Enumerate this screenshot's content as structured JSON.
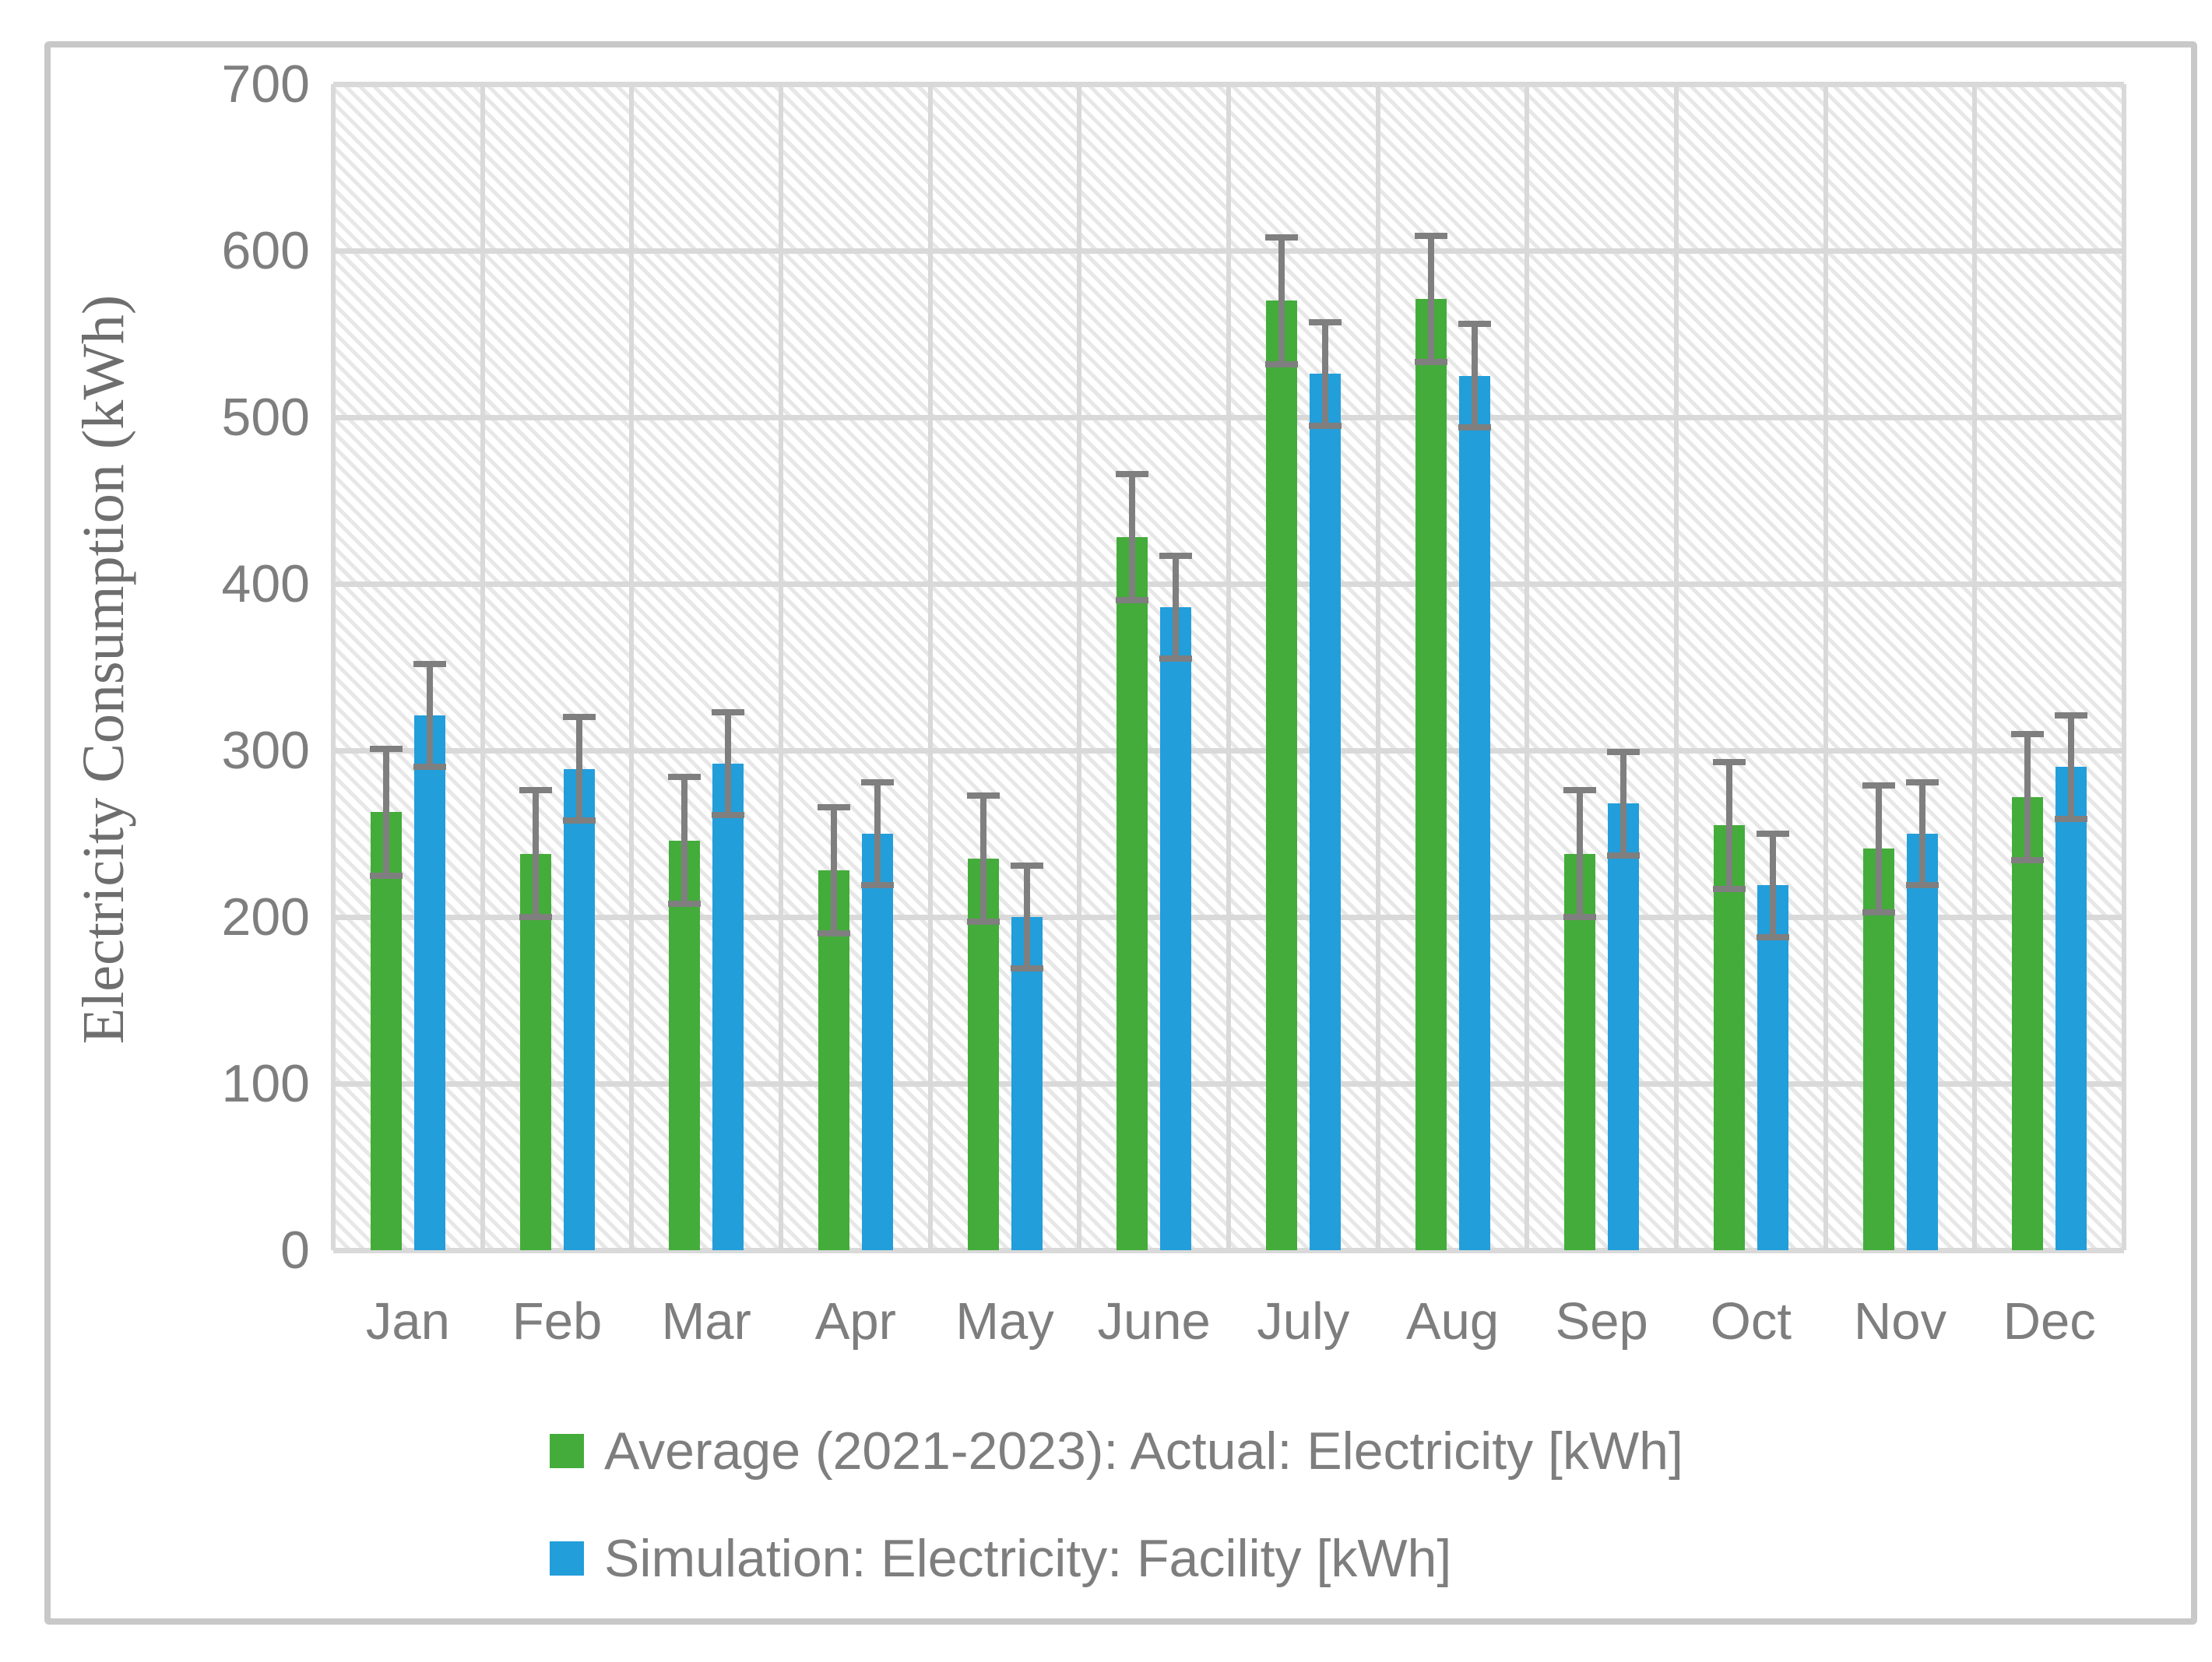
{
  "figure": {
    "background_color": "#ffffff",
    "border_color": "#c8c8c8"
  },
  "chart_data": {
    "type": "bar",
    "title": "",
    "ylabel": "Electricity Consumption (kWh)",
    "xlabel": "",
    "ylim": [
      0,
      700
    ],
    "yticks": [
      0,
      100,
      200,
      300,
      400,
      500,
      600,
      700
    ],
    "grid": true,
    "plot_background": "diagonal-hatch",
    "gridline_color": "#d9d9d9",
    "error_bar_color": "#7f7f7f",
    "legend_position": "bottom-left",
    "categories": [
      "Jan",
      "Feb",
      "Mar",
      "Apr",
      "May",
      "June",
      "July",
      "Aug",
      "Sep",
      "Oct",
      "Nov",
      "Dec"
    ],
    "series": [
      {
        "name": "Average (2021-2023): Actual: Electricity [kWh]",
        "color": "#44ac3b",
        "values": [
          263,
          238,
          246,
          228,
          235,
          428,
          570,
          571,
          238,
          255,
          241,
          272
        ],
        "error": 38
      },
      {
        "name": "Simulation: Electricity: Facility [kWh]",
        "color": "#229edb",
        "values": [
          321,
          289,
          292,
          250,
          200,
          386,
          526,
          525,
          268,
          219,
          250,
          290
        ],
        "error": 31
      }
    ]
  }
}
